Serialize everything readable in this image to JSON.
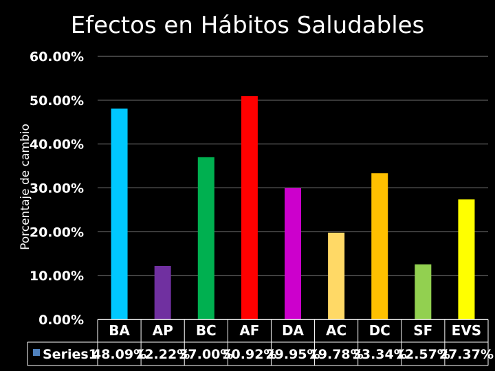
{
  "chart_data": {
    "type": "bar",
    "title": "Efectos en Hábitos Saludables",
    "ylabel": "Porcentaje de cambio",
    "xlabel": "",
    "ylim": [
      0,
      0.6
    ],
    "y_ticks": [
      "0.00%",
      "10.00%",
      "20.00%",
      "30.00%",
      "40.00%",
      "50.00%",
      "60.00%"
    ],
    "categories": [
      "BA",
      "AP",
      "BC",
      "AF",
      "DA",
      "AC",
      "DC",
      "SF",
      "EVS"
    ],
    "series": [
      {
        "name": "Series1",
        "values": [
          0.4809,
          0.1222,
          0.37,
          0.5092,
          0.2995,
          0.1978,
          0.3334,
          0.1257,
          0.2737
        ],
        "value_labels": [
          "48.09%",
          "12.22%",
          "37.00%",
          "50.92%",
          "29.95%",
          "19.78%",
          "33.34%",
          "12.57%",
          "27.37%"
        ],
        "legend_color": "#4f81bd"
      }
    ],
    "bar_colors": [
      "#00c8ff",
      "#7030a0",
      "#00b050",
      "#ff0000",
      "#cc00cc",
      "#ffd966",
      "#ffc000",
      "#92d050",
      "#ffff00"
    ],
    "grid": true,
    "data_table": true,
    "legend": "bottom-left data table key"
  }
}
